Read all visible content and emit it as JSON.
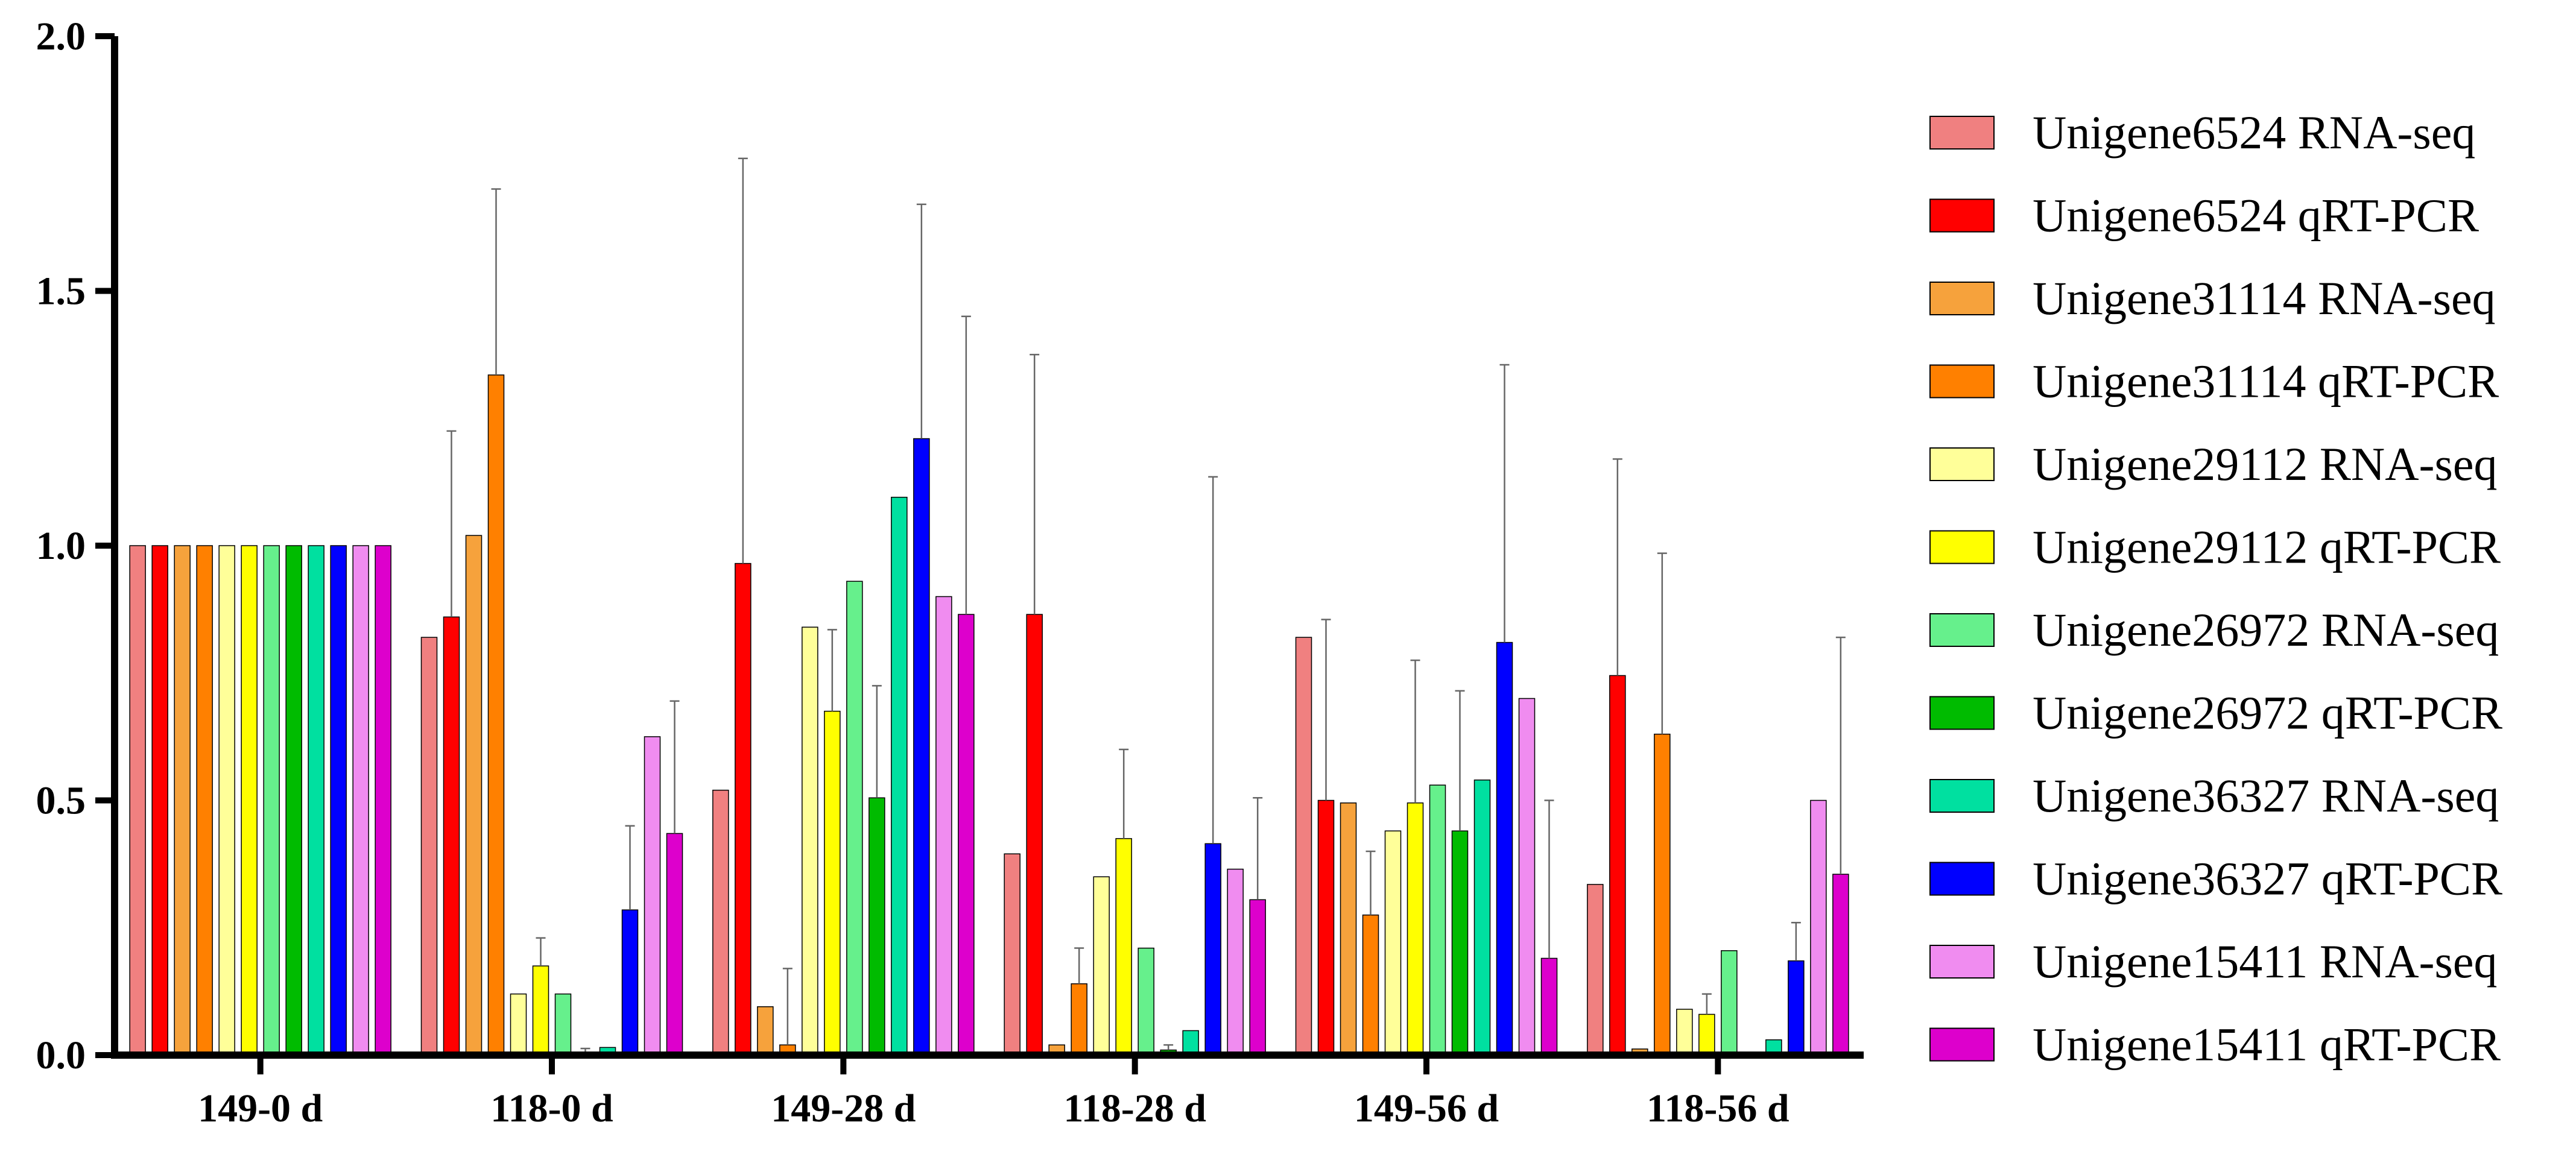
{
  "chart_data": {
    "type": "bar",
    "title": "",
    "xlabel": "",
    "ylabel": "",
    "ylim": [
      0,
      2.0
    ],
    "yticks": [
      "0.0",
      "0.5",
      "1.0",
      "1.5",
      "2.0"
    ],
    "grid": false,
    "legend_position": "right",
    "categories": [
      "149-0 d",
      "118-0 d",
      "149-28 d",
      "118-28 d",
      "149-56 d",
      "118-56 d"
    ],
    "series": [
      {
        "name": "Unigene6524 RNA-seq",
        "color": "#F08080",
        "values": [
          1.0,
          0.82,
          0.52,
          0.395,
          0.82,
          0.335
        ],
        "errors": [
          0,
          0,
          0,
          0,
          0,
          0
        ]
      },
      {
        "name": "Unigene6524 qRT-PCR",
        "color": "#FF0000",
        "values": [
          1.0,
          0.86,
          0.965,
          0.865,
          0.5,
          0.745
        ],
        "errors": [
          0,
          0.365,
          0.795,
          0.51,
          0.355,
          0.425
        ]
      },
      {
        "name": "Unigene31114 RNA-seq",
        "color": "#F6A23C",
        "values": [
          1.0,
          1.02,
          0.095,
          0.02,
          0.495,
          0.012
        ],
        "errors": [
          0,
          0,
          0,
          0,
          0,
          0
        ]
      },
      {
        "name": "Unigene31114 qRT-PCR",
        "color": "#FF8000",
        "values": [
          1.0,
          1.335,
          0.02,
          0.14,
          0.275,
          0.63
        ],
        "errors": [
          0,
          0.365,
          0.15,
          0.07,
          0.125,
          0.355
        ]
      },
      {
        "name": "Unigene29112 RNA-seq",
        "color": "#FFFF99",
        "values": [
          1.0,
          0.12,
          0.84,
          0.35,
          0.44,
          0.09
        ],
        "errors": [
          0,
          0,
          0,
          0,
          0,
          0
        ]
      },
      {
        "name": "Unigene29112 qRT-PCR",
        "color": "#FFFF00",
        "values": [
          1.0,
          0.175,
          0.675,
          0.425,
          0.495,
          0.08
        ],
        "errors": [
          0,
          0.055,
          0.16,
          0.175,
          0.28,
          0.04
        ]
      },
      {
        "name": "Unigene26972 RNA-seq",
        "color": "#66F08C",
        "values": [
          1.0,
          0.12,
          0.93,
          0.21,
          0.53,
          0.205
        ],
        "errors": [
          0,
          0,
          0,
          0,
          0,
          0
        ]
      },
      {
        "name": "Unigene26972 qRT-PCR",
        "color": "#00BB00",
        "values": [
          1.0,
          0.005,
          0.505,
          0.01,
          0.44,
          0.002
        ],
        "errors": [
          0,
          0.008,
          0.22,
          0.01,
          0.275,
          0.002
        ]
      },
      {
        "name": "Unigene36327 RNA-seq",
        "color": "#00E0A0",
        "values": [
          1.0,
          0.015,
          1.095,
          0.048,
          0.54,
          0.03
        ],
        "errors": [
          0,
          0,
          0,
          0,
          0,
          0
        ]
      },
      {
        "name": "Unigene36327 qRT-PCR",
        "color": "#0000FF",
        "values": [
          1.0,
          0.285,
          1.21,
          0.415,
          0.81,
          0.185
        ],
        "errors": [
          0,
          0.165,
          0.46,
          0.72,
          0.545,
          0.075
        ]
      },
      {
        "name": "Unigene15411 RNA-seq",
        "color": "#F08CF0",
        "values": [
          1.0,
          0.625,
          0.9,
          0.365,
          0.7,
          0.5
        ],
        "errors": [
          0,
          0,
          0,
          0,
          0,
          0
        ]
      },
      {
        "name": "Unigene15411 qRT-PCR",
        "color": "#DD00CC",
        "values": [
          1.0,
          0.435,
          0.865,
          0.305,
          0.19,
          0.355
        ],
        "errors": [
          0,
          0.26,
          0.585,
          0.2,
          0.31,
          0.465
        ]
      }
    ]
  }
}
